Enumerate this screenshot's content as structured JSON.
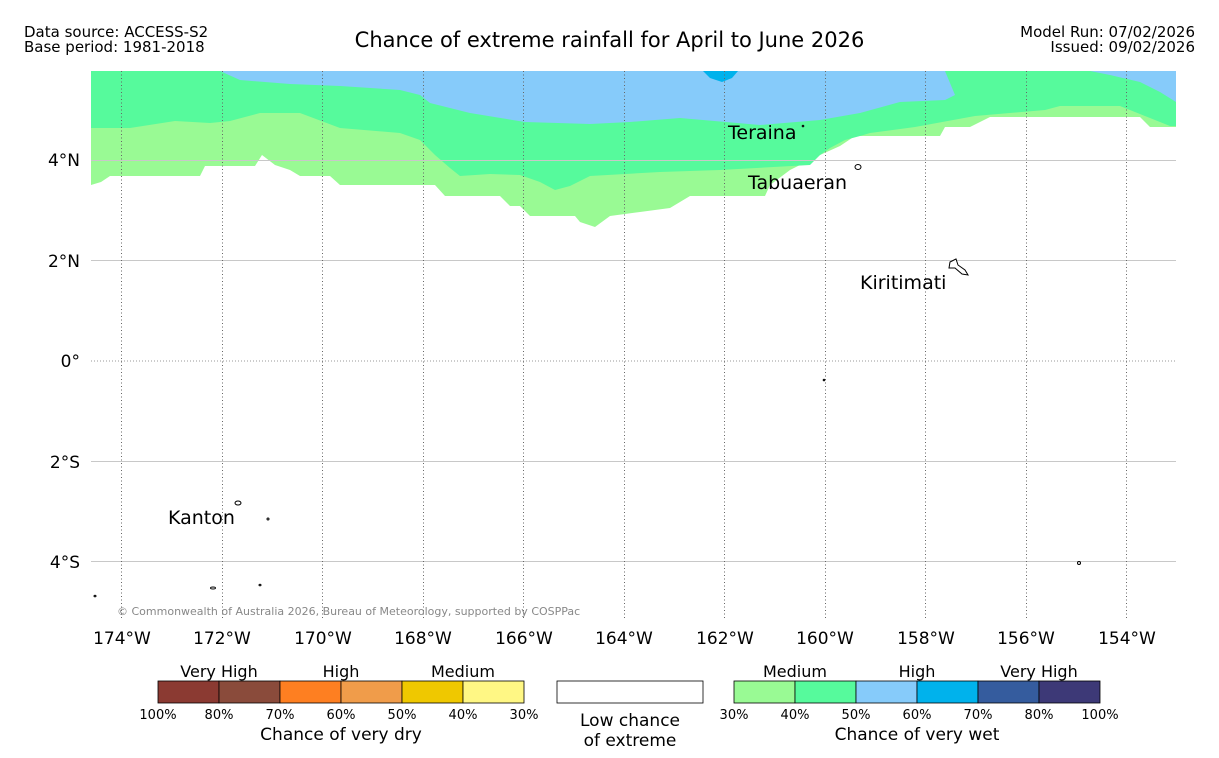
{
  "header": {
    "data_source": "Data source: ACCESS-S2",
    "base_period": "Base period: 1981-2018",
    "title": "Chance of extreme rainfall for April to June 2026",
    "model_run": "Model Run: 07/02/2026",
    "issued": "Issued: 09/02/2026"
  },
  "map": {
    "lon_ticks": [
      "174°W",
      "172°W",
      "170°W",
      "168°W",
      "166°W",
      "164°W",
      "162°W",
      "160°W",
      "158°W",
      "156°W",
      "154°W"
    ],
    "lat_ticks": [
      "4°N",
      "2°N",
      "0°",
      "2°S",
      "4°S"
    ],
    "places": [
      {
        "name": "Teraina"
      },
      {
        "name": "Tabuaeran"
      },
      {
        "name": "Kiritimati"
      },
      {
        "name": "Kanton"
      }
    ],
    "copyright": "© Commonwealth of Australia 2026, Bureau of Meteorology, supported by COSPPac",
    "colors": {
      "wet_medium_low": "#99fa94",
      "wet_medium_high": "#56fa9c",
      "wet_high_low": "#86cbfa",
      "wet_high_high": "#00b2ec"
    }
  },
  "legend": {
    "dry": {
      "categories": [
        "Very High",
        "High",
        "Medium"
      ],
      "colors": [
        "#8b3a32",
        "#8a4b3b",
        "#fe7f21",
        "#f09c4a",
        "#efc800",
        "#fff784"
      ],
      "ticks": [
        "100%",
        "80%",
        "70%",
        "60%",
        "50%",
        "40%",
        "30%"
      ],
      "caption": "Chance of very dry"
    },
    "neutral": {
      "line1": "Low chance",
      "line2": "of extreme"
    },
    "wet": {
      "categories": [
        "Medium",
        "High",
        "Very High"
      ],
      "colors": [
        "#99fa94",
        "#56fa9c",
        "#86cbfa",
        "#00b2ec",
        "#355c9e",
        "#3d3977"
      ],
      "ticks": [
        "30%",
        "40%",
        "50%",
        "60%",
        "70%",
        "80%",
        "100%"
      ],
      "caption": "Chance of very wet"
    }
  }
}
